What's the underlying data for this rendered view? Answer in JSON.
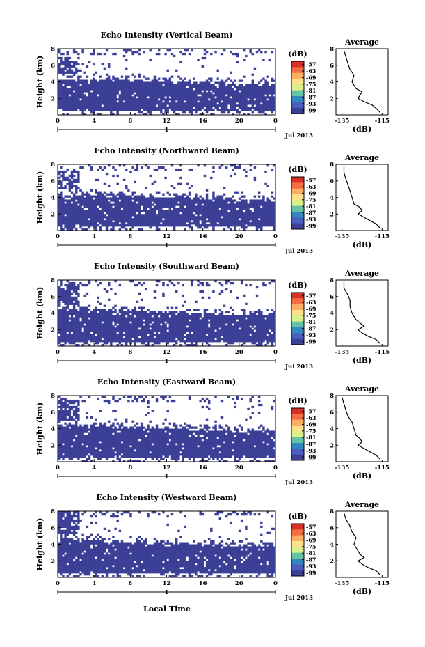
{
  "figure": {
    "xlabel": "Local Time",
    "date_label": "Jul 2013",
    "day_label": "1"
  },
  "colorbar": {
    "unit_label": "(dB)",
    "ticks": [
      "-57",
      "-63",
      "-69",
      "-75",
      "-81",
      "-87",
      "-93",
      "-99"
    ],
    "colors": [
      "#d73027",
      "#f46d43",
      "#fdae61",
      "#fee08b",
      "#d9ef8b",
      "#66c2a5",
      "#3288bd",
      "#4a5fc1",
      "#3b3f95"
    ]
  },
  "profile": {
    "title": "Average",
    "xlabel": "(dB)",
    "x_ticks": [
      "-135",
      "-115"
    ],
    "y_ticks": [
      "8",
      "6",
      "4",
      "2"
    ]
  },
  "chart_data": [
    {
      "type": "heatmap",
      "title": "Echo Intensity (Vertical Beam)",
      "ylabel": "Height (km)",
      "x_ticks": [
        "0",
        "4",
        "8",
        "12",
        "16",
        "20",
        "0"
      ],
      "y_ticks": [
        "8",
        "6",
        "4",
        "2"
      ],
      "xlim": [
        0,
        24
      ],
      "ylim": [
        0,
        8
      ],
      "zlim": [
        -99,
        -57
      ],
      "color": "#3b3f95",
      "solid_layer_top_km": [
        4.2,
        4.1,
        4.0,
        3.8,
        3.7
      ],
      "lower_patch_top_km": 6.0,
      "profile_x": [
        -116,
        -118,
        -120,
        -124,
        -127,
        -126,
        -125,
        -128,
        -130,
        -129,
        -131,
        -132,
        -133,
        -134
      ],
      "profile_y": [
        0.3,
        0.8,
        1.2,
        1.6,
        2.0,
        2.4,
        2.8,
        3.2,
        4.0,
        4.8,
        5.5,
        6.2,
        7.0,
        7.8
      ]
    },
    {
      "type": "heatmap",
      "title": "Echo Intensity (Northward Beam)",
      "ylabel": "Height (km)",
      "x_ticks": [
        "0",
        "4",
        "8",
        "12",
        "16",
        "20",
        "0"
      ],
      "y_ticks": [
        "8",
        "6",
        "4",
        "2"
      ],
      "xlim": [
        0,
        24
      ],
      "ylim": [
        0,
        8
      ],
      "zlim": [
        -99,
        -57
      ],
      "color": "#3b3f95",
      "solid_layer_top_km": [
        4.3,
        4.2,
        4.0,
        3.9,
        3.7
      ],
      "lower_patch_top_km": 6.2,
      "profile_x": [
        -116,
        -118,
        -121,
        -124,
        -127,
        -125,
        -126,
        -129,
        -130,
        -131,
        -132,
        -133,
        -134,
        -134
      ],
      "profile_y": [
        0.3,
        0.8,
        1.2,
        1.6,
        2.0,
        2.4,
        2.8,
        3.2,
        4.0,
        4.8,
        5.5,
        6.2,
        7.0,
        7.8
      ]
    },
    {
      "type": "heatmap",
      "title": "Echo Intensity (Southward Beam)",
      "ylabel": "Height (km)",
      "x_ticks": [
        "0",
        "4",
        "8",
        "12",
        "16",
        "20",
        "0"
      ],
      "y_ticks": [
        "8",
        "6",
        "4",
        "2"
      ],
      "xlim": [
        0,
        24
      ],
      "ylim": [
        0,
        8
      ],
      "zlim": [
        -99,
        -57
      ],
      "color": "#3b3f95",
      "solid_layer_top_km": [
        4.5,
        4.3,
        4.1,
        3.9,
        3.8
      ],
      "lower_patch_top_km": 6.4,
      "profile_x": [
        -116,
        -118,
        -122,
        -125,
        -127,
        -124,
        -126,
        -128,
        -130,
        -131,
        -131,
        -132,
        -134,
        -134
      ],
      "profile_y": [
        0.3,
        0.8,
        1.2,
        1.6,
        2.0,
        2.4,
        2.8,
        3.2,
        4.0,
        4.8,
        5.5,
        6.2,
        7.0,
        7.8
      ]
    },
    {
      "type": "heatmap",
      "title": "Echo Intensity (Eastward Beam)",
      "ylabel": "Height (km)",
      "x_ticks": [
        "0",
        "4",
        "8",
        "12",
        "16",
        "20",
        "0"
      ],
      "y_ticks": [
        "8",
        "6",
        "4",
        "2"
      ],
      "xlim": [
        0,
        24
      ],
      "ylim": [
        0,
        8
      ],
      "zlim": [
        -99,
        -57
      ],
      "color": "#3b3f95",
      "solid_layer_top_km": [
        4.4,
        4.2,
        4.0,
        3.8,
        3.7
      ],
      "lower_patch_top_km": 6.5,
      "profile_x": [
        -116,
        -118,
        -121,
        -124,
        -127,
        -125,
        -126,
        -128,
        -129,
        -130,
        -132,
        -133,
        -134,
        -135
      ],
      "profile_y": [
        0.3,
        0.8,
        1.2,
        1.6,
        2.0,
        2.4,
        2.8,
        3.2,
        4.0,
        4.8,
        5.5,
        6.2,
        7.0,
        7.8
      ]
    },
    {
      "type": "heatmap",
      "title": "Echo Intensity (Westward Beam)",
      "ylabel": "Height (km)",
      "x_ticks": [
        "0",
        "4",
        "8",
        "12",
        "16",
        "20",
        "0"
      ],
      "y_ticks": [
        "8",
        "6",
        "4",
        "2"
      ],
      "xlim": [
        0,
        24
      ],
      "ylim": [
        0,
        8
      ],
      "zlim": [
        -99,
        -57
      ],
      "color": "#3b3f95",
      "solid_layer_top_km": [
        4.5,
        4.3,
        4.1,
        3.9,
        3.8
      ],
      "lower_patch_top_km": 7.0,
      "profile_x": [
        -116,
        -118,
        -122,
        -125,
        -127,
        -124,
        -126,
        -127,
        -129,
        -128,
        -130,
        -131,
        -133,
        -134
      ],
      "profile_y": [
        0.3,
        0.8,
        1.2,
        1.6,
        2.0,
        2.4,
        2.8,
        3.2,
        4.0,
        4.8,
        5.5,
        6.2,
        7.0,
        7.8
      ]
    }
  ]
}
